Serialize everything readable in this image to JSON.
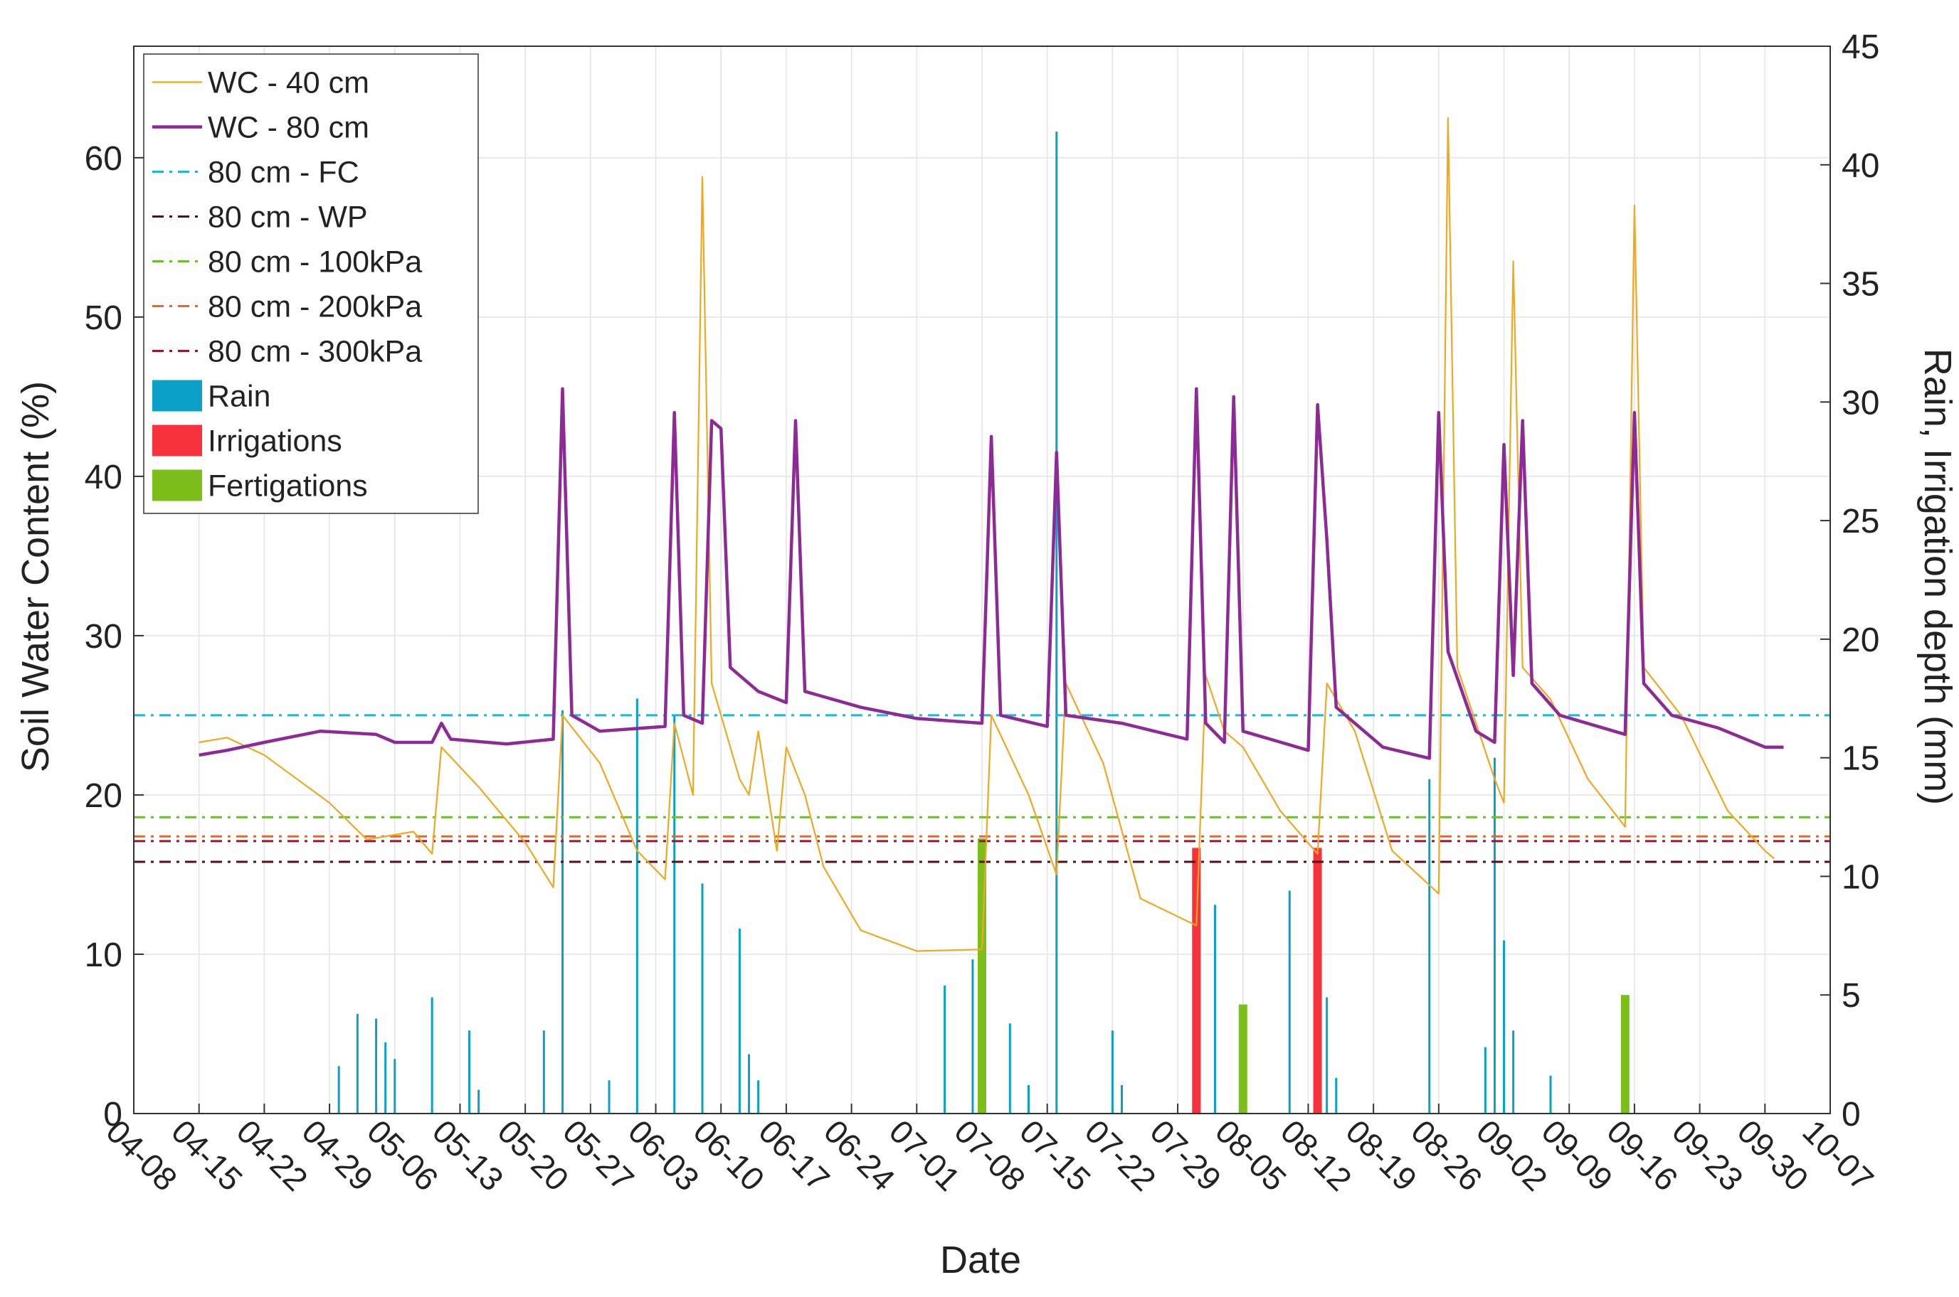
{
  "chart_data": {
    "type": "line",
    "xlabel": "Date",
    "ylabel": "Soil Water Content (%)",
    "y2label": "Rain, Irrigation depth (mm)",
    "xlim": [
      "04-08",
      "10-07"
    ],
    "xticks": [
      "04-08",
      "04-15",
      "04-22",
      "04-29",
      "05-06",
      "05-13",
      "05-20",
      "05-27",
      "06-03",
      "06-10",
      "06-17",
      "06-24",
      "07-01",
      "07-08",
      "07-15",
      "07-22",
      "07-29",
      "08-05",
      "08-12",
      "08-19",
      "08-26",
      "09-02",
      "09-09",
      "09-16",
      "09-23",
      "09-30",
      "10-07"
    ],
    "ylim": [
      0,
      67
    ],
    "yticks": [
      0,
      10,
      20,
      30,
      40,
      50,
      60
    ],
    "y2lim": [
      0,
      45
    ],
    "y2ticks": [
      0,
      5,
      10,
      15,
      20,
      25,
      30,
      35,
      40,
      45
    ],
    "grid": true,
    "legend": "upper left",
    "series": [
      {
        "name": "WC - 40 cm",
        "kind": "line",
        "color": "#f0a820",
        "width": 2.2,
        "x": [
          "04-15",
          "04-18",
          "04-22",
          "04-29",
          "05-03",
          "05-08",
          "05-10",
          "05-11",
          "05-15",
          "05-20",
          "05-23",
          "05-24",
          "05-28",
          "06-01",
          "06-04",
          "06-05",
          "06-07",
          "06-08",
          "06-09",
          "06-12",
          "06-13",
          "06-14",
          "06-16",
          "06-17",
          "06-19",
          "06-21",
          "06-25",
          "07-01",
          "07-08",
          "07-09",
          "07-13",
          "07-16",
          "07-17",
          "07-21",
          "07-25",
          "07-31",
          "08-01",
          "08-03",
          "08-05",
          "08-09",
          "08-13",
          "08-14",
          "08-17",
          "08-21",
          "08-26",
          "08-27",
          "08-28",
          "09-01",
          "09-02",
          "09-03",
          "09-04",
          "09-07",
          "09-11",
          "09-15",
          "09-16",
          "09-17",
          "09-21",
          "09-26",
          "09-30",
          "10-01"
        ],
        "values": [
          23.3,
          23.6,
          22.5,
          19.5,
          17.2,
          17.7,
          16.3,
          23,
          20.5,
          17,
          14.2,
          25,
          22,
          16.5,
          14.7,
          24.5,
          20,
          58.8,
          27,
          21,
          20,
          24,
          16.5,
          23,
          20,
          15.5,
          11.5,
          10.2,
          10.3,
          25,
          20,
          15,
          27,
          22,
          13.5,
          11.8,
          27.5,
          24,
          23,
          19,
          16.3,
          27,
          24,
          16.5,
          13.8,
          62.5,
          28,
          21,
          19.5,
          53.5,
          28,
          26,
          21,
          18,
          57,
          28,
          25,
          19,
          16.5,
          16
        ]
      },
      {
        "name": "WC - 80 cm",
        "kind": "line",
        "color": "#8e2a96",
        "width": 4.5,
        "x": [
          "04-15",
          "04-18",
          "04-22",
          "04-28",
          "05-04",
          "05-06",
          "05-10",
          "05-11",
          "05-12",
          "05-18",
          "05-23",
          "05-24",
          "05-25",
          "05-28",
          "06-04",
          "06-05",
          "06-06",
          "06-08",
          "06-09",
          "06-10",
          "06-11",
          "06-14",
          "06-17",
          "06-18",
          "06-19",
          "06-25",
          "07-01",
          "07-08",
          "07-09",
          "07-10",
          "07-15",
          "07-16",
          "07-17",
          "07-23",
          "07-30",
          "07-31",
          "08-01",
          "08-03",
          "08-04",
          "08-05",
          "08-12",
          "08-13",
          "08-14",
          "08-15",
          "08-20",
          "08-25",
          "08-26",
          "08-27",
          "08-30",
          "09-01",
          "09-02",
          "09-03",
          "09-04",
          "09-05",
          "09-08",
          "09-15",
          "09-16",
          "09-17",
          "09-20",
          "09-25",
          "09-30",
          "10-02"
        ],
        "values": [
          22.5,
          22.8,
          23.3,
          24,
          23.8,
          23.3,
          23.3,
          24.5,
          23.5,
          23.2,
          23.5,
          45.5,
          25,
          24,
          24.3,
          44,
          25,
          24.5,
          43.5,
          43,
          28,
          26.5,
          25.8,
          43.5,
          26.5,
          25.5,
          24.8,
          24.5,
          42.5,
          25,
          24.3,
          41.5,
          25,
          24.5,
          23.5,
          45.5,
          24.5,
          23.3,
          45,
          24,
          22.8,
          44.5,
          36,
          25.5,
          23,
          22.3,
          44,
          29,
          24,
          23.3,
          42,
          27.5,
          43.5,
          27,
          25,
          23.8,
          44,
          27,
          25,
          24.2,
          23,
          23
        ]
      },
      {
        "name": "80 cm - FC",
        "kind": "hline",
        "color": "#1fb5d6",
        "value": 25
      },
      {
        "name": "80 cm - WP",
        "kind": "hline",
        "color": "#5a0d16",
        "value": 15.8
      },
      {
        "name": "80 cm - 100kPa",
        "kind": "hline",
        "color": "#6abf2e",
        "value": 18.6
      },
      {
        "name": "80 cm - 200kPa",
        "kind": "hline",
        "color": "#f26322",
        "value": 17.4
      },
      {
        "name": "80 cm - 300kPa",
        "kind": "hline",
        "color": "#a4122c",
        "value": 17.1
      },
      {
        "name": "Rain",
        "kind": "bar",
        "axis": "y2",
        "color": "#0aa0c8",
        "barwidth": 3,
        "x": [
          "04-30",
          "05-02",
          "05-04",
          "05-05",
          "05-06",
          "05-10",
          "05-14",
          "05-15",
          "05-22",
          "05-24",
          "05-29",
          "06-01",
          "06-05",
          "06-08",
          "06-12",
          "06-13",
          "06-14",
          "07-04",
          "07-07",
          "07-11",
          "07-13",
          "07-16",
          "07-22",
          "07-23",
          "08-02",
          "08-10",
          "08-14",
          "08-15",
          "08-25",
          "08-31",
          "09-01",
          "09-02",
          "09-03",
          "09-07"
        ],
        "values": [
          2,
          4.2,
          4,
          3,
          2.3,
          4.9,
          3.5,
          1,
          3.5,
          17,
          1.4,
          17.5,
          16.8,
          9.7,
          7.8,
          2.5,
          1.4,
          5.4,
          6.5,
          3.8,
          1.2,
          41.4,
          3.5,
          1.2,
          8.8,
          9.4,
          4.9,
          1.5,
          14.1,
          2.8,
          15,
          7.3,
          3.5,
          1.6
        ]
      },
      {
        "name": "Irrigations",
        "kind": "bar",
        "axis": "y2",
        "color": "#f8323c",
        "barwidth": 12,
        "x": [
          "07-31",
          "08-13"
        ],
        "values": [
          11.2,
          11.2
        ]
      },
      {
        "name": "Fertigations",
        "kind": "bar",
        "axis": "y2",
        "color": "#7cbf1a",
        "barwidth": 12,
        "x": [
          "07-08",
          "08-05",
          "09-15"
        ],
        "values": [
          11.6,
          4.6,
          5
        ]
      }
    ]
  }
}
